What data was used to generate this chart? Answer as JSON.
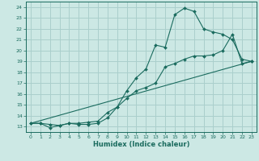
{
  "xlabel": "Humidex (Indice chaleur)",
  "ylabel": "",
  "xlim": [
    -0.5,
    23.5
  ],
  "ylim": [
    12.5,
    24.5
  ],
  "xticks": [
    0,
    1,
    2,
    3,
    4,
    5,
    6,
    7,
    8,
    9,
    10,
    11,
    12,
    13,
    14,
    15,
    16,
    17,
    18,
    19,
    20,
    21,
    22,
    23
  ],
  "yticks": [
    13,
    14,
    15,
    16,
    17,
    18,
    19,
    20,
    21,
    22,
    23,
    24
  ],
  "bg_color": "#cce8e4",
  "grid_color": "#aacfcc",
  "line_color": "#1a6b5e",
  "line1_x": [
    0,
    1,
    2,
    3,
    4,
    5,
    6,
    7,
    8,
    9,
    10,
    11,
    12,
    13,
    14,
    15,
    16,
    17,
    18,
    19,
    20,
    21,
    22,
    23
  ],
  "line1_y": [
    13.3,
    13.3,
    12.9,
    13.1,
    13.3,
    13.2,
    13.2,
    13.3,
    13.8,
    14.8,
    16.3,
    17.5,
    18.3,
    20.5,
    20.3,
    23.3,
    23.9,
    23.6,
    22.0,
    21.7,
    21.5,
    21.0,
    19.2,
    19.0
  ],
  "line2_x": [
    0,
    1,
    2,
    3,
    4,
    5,
    6,
    7,
    8,
    9,
    10,
    11,
    12,
    13,
    14,
    15,
    16,
    17,
    18,
    19,
    20,
    21,
    22,
    23
  ],
  "line2_y": [
    13.3,
    13.3,
    13.2,
    13.1,
    13.3,
    13.3,
    13.4,
    13.5,
    14.3,
    14.8,
    15.6,
    16.3,
    16.6,
    17.0,
    18.5,
    18.8,
    19.2,
    19.5,
    19.5,
    19.6,
    20.0,
    21.5,
    18.8,
    19.0
  ],
  "line3_x": [
    0,
    23
  ],
  "line3_y": [
    13.3,
    19.0
  ]
}
